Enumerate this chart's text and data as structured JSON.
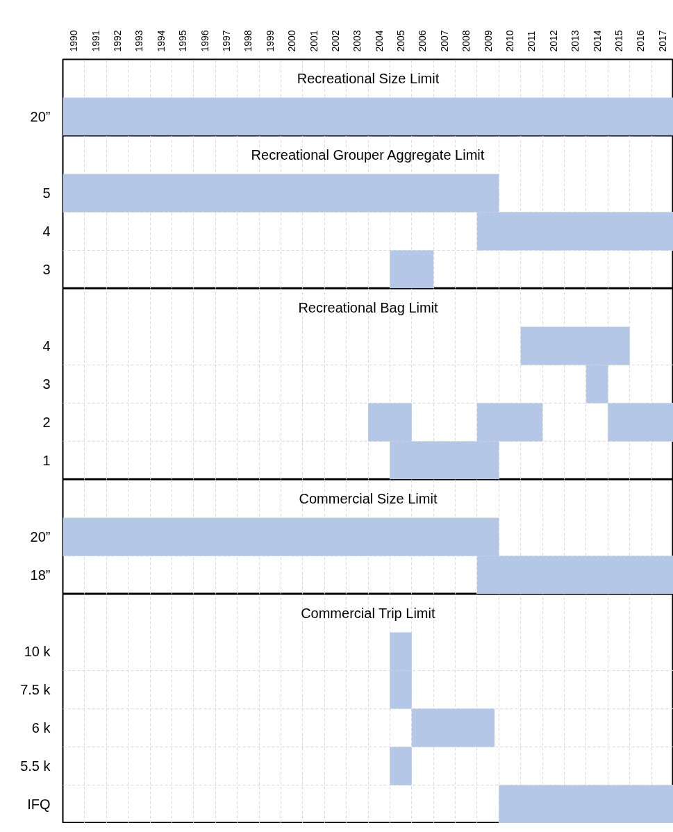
{
  "chart_data": [
    {
      "type": "bar",
      "orientation": "horizontal",
      "title": "Recreational Size Limit",
      "categories": [
        "20”"
      ],
      "xlim": [
        1990,
        2018
      ],
      "xticks": [
        {
          "value": 1990.5,
          "label": "1990"
        },
        {
          "value": 1991.5,
          "label": "1991"
        },
        {
          "value": 1992.5,
          "label": "1992"
        },
        {
          "value": 1993.5,
          "label": "1993"
        },
        {
          "value": 1994.5,
          "label": "1994"
        },
        {
          "value": 1995.5,
          "label": "1995"
        },
        {
          "value": 1996.5,
          "label": "1996"
        },
        {
          "value": 1997.5,
          "label": "1997"
        },
        {
          "value": 1998.5,
          "label": "1998"
        },
        {
          "value": 1999.5,
          "label": "1999"
        },
        {
          "value": 2000.5,
          "label": "2000"
        },
        {
          "value": 2001.5,
          "label": "2001"
        },
        {
          "value": 2002.5,
          "label": "2002"
        },
        {
          "value": 2003.5,
          "label": "2003"
        },
        {
          "value": 2004.5,
          "label": "2004"
        },
        {
          "value": 2005.5,
          "label": "2005"
        },
        {
          "value": 2006.5,
          "label": "2006"
        },
        {
          "value": 2007.5,
          "label": "2007"
        },
        {
          "value": 2008.5,
          "label": "2008"
        },
        {
          "value": 2009.5,
          "label": "2009"
        },
        {
          "value": 2010.5,
          "label": "2010"
        },
        {
          "value": 2011.5,
          "label": "2011"
        },
        {
          "value": 2012.5,
          "label": "2012"
        },
        {
          "value": 2013.5,
          "label": "2013"
        },
        {
          "value": 2014.5,
          "label": "2014"
        },
        {
          "value": 2015.5,
          "label": "2015"
        },
        {
          "value": 2016.5,
          "label": "2016"
        },
        {
          "value": 2017.5,
          "label": "2017"
        }
      ],
      "grid": true,
      "series": [
        {
          "color": "#b4c7e7",
          "values": [
            28
          ],
          "base": [
            1990
          ]
        }
      ]
    },
    {
      "type": "bar",
      "orientation": "horizontal",
      "title": "Recreational Grouper Aggregate Limit",
      "categories": [
        "5",
        "4",
        "3"
      ],
      "xlim": [
        1990,
        2018
      ],
      "tick_labels": "y",
      "grid": true,
      "series": [
        {
          "color": "#b4c7e7",
          "values": [
            20,
            9,
            2
          ],
          "base": [
            1990,
            2009,
            2005
          ]
        }
      ]
    },
    {
      "type": "bar",
      "orientation": "horizontal",
      "title": "Recreational Bag Limit",
      "categories": [
        "4",
        "3",
        "2",
        "1"
      ],
      "xlim": [
        1990,
        2018
      ],
      "tick_labels": "y",
      "grid": true,
      "series": [
        {
          "color": "#b4c7e7",
          "values": [
            5,
            1,
            2,
            5
          ],
          "base": [
            2011,
            2014,
            2004,
            2005
          ]
        },
        {
          "color": "#b4c7e7",
          "values": [
            null,
            null,
            3,
            null
          ],
          "base": [
            null,
            null,
            2009,
            null
          ]
        },
        {
          "color": "#b4c7e7",
          "values": [
            null,
            null,
            3,
            null
          ],
          "base": [
            null,
            null,
            2015,
            null
          ]
        }
      ]
    },
    {
      "type": "bar",
      "orientation": "horizontal",
      "title": "Commercial Size Limit",
      "categories": [
        "20”",
        "18”"
      ],
      "xlim": [
        1990,
        2018
      ],
      "tick_labels": "y",
      "grid": true,
      "series": [
        {
          "color": "#b4c7e7",
          "values": [
            20,
            9
          ],
          "base": [
            1990,
            2009
          ]
        }
      ]
    },
    {
      "type": "bar",
      "orientation": "horizontal",
      "title": "Commercial Trip Limit",
      "categories": [
        "10 k",
        "7.5 k",
        "6 k",
        "5.5 k",
        "IFQ"
      ],
      "xlim": [
        1990,
        2018
      ],
      "tick_labels": "y",
      "grid": true,
      "series": [
        {
          "color": "#b4c7e7",
          "values": [
            1,
            1,
            3.8,
            1,
            8
          ],
          "base": [
            2005,
            2005,
            2006,
            2005,
            2010
          ]
        }
      ]
    }
  ]
}
